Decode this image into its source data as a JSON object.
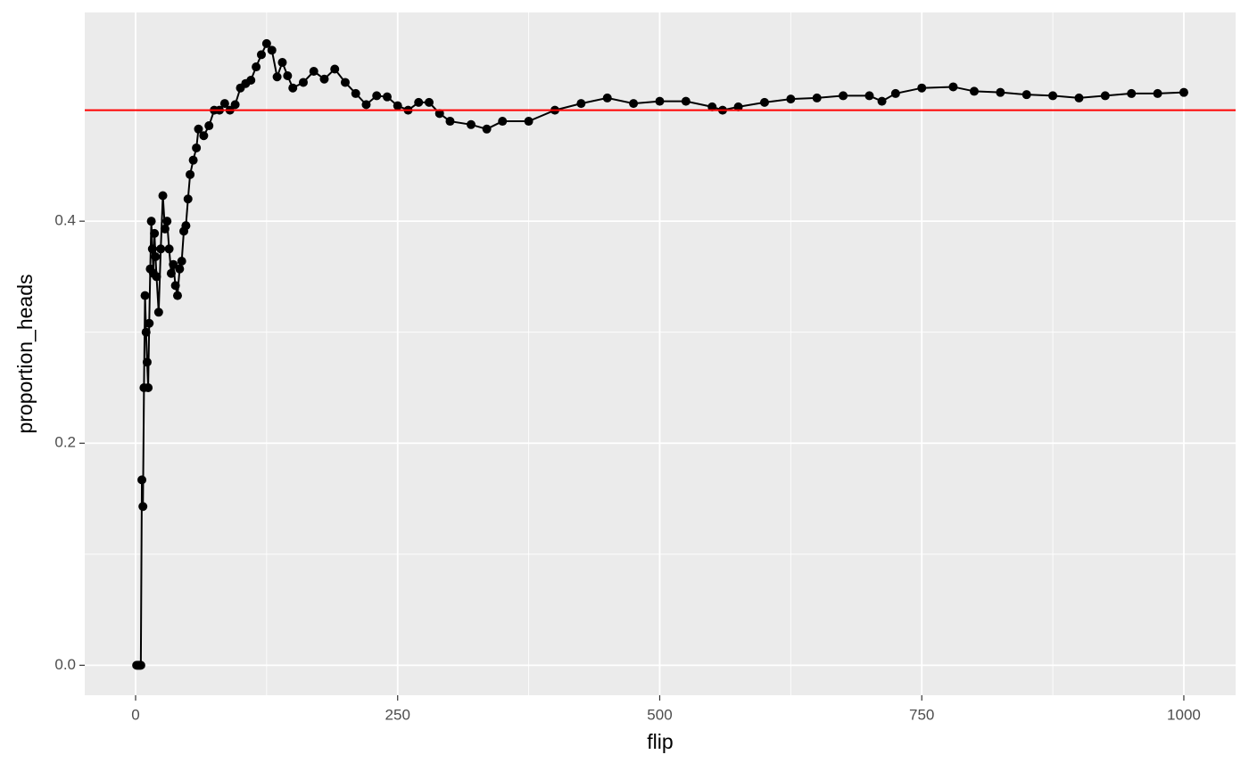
{
  "chart_data": {
    "type": "line",
    "x_label": "flip",
    "y_label": "proportion_heads",
    "x": [
      1,
      2,
      3,
      4,
      5,
      6,
      7,
      8,
      9,
      10,
      11,
      12,
      13,
      14,
      15,
      16,
      17,
      18,
      19,
      20,
      22,
      24,
      26,
      28,
      30,
      32,
      34,
      36,
      38,
      40,
      42,
      44,
      46,
      48,
      50,
      52,
      55,
      58,
      60,
      65,
      70,
      75,
      80,
      85,
      90,
      95,
      100,
      105,
      110,
      115,
      120,
      125,
      130,
      135,
      140,
      145,
      150,
      160,
      170,
      180,
      190,
      200,
      210,
      220,
      230,
      240,
      250,
      260,
      270,
      280,
      290,
      300,
      320,
      335,
      350,
      375,
      400,
      425,
      450,
      475,
      500,
      525,
      550,
      560,
      575,
      600,
      625,
      650,
      675,
      700,
      712,
      725,
      750,
      780,
      800,
      825,
      850,
      875,
      900,
      925,
      950,
      975,
      1000
    ],
    "values": [
      0,
      0,
      0,
      0,
      0,
      0.167,
      0.143,
      0.25,
      0.333,
      0.3,
      0.273,
      0.25,
      0.308,
      0.357,
      0.4,
      0.375,
      0.353,
      0.389,
      0.368,
      0.35,
      0.318,
      0.375,
      0.423,
      0.393,
      0.4,
      0.375,
      0.353,
      0.361,
      0.342,
      0.333,
      0.357,
      0.364,
      0.391,
      0.396,
      0.42,
      0.442,
      0.455,
      0.466,
      0.483,
      0.477,
      0.486,
      0.5,
      0.5,
      0.506,
      0.5,
      0.505,
      0.52,
      0.524,
      0.527,
      0.539,
      0.55,
      0.56,
      0.554,
      0.53,
      0.543,
      0.531,
      0.52,
      0.525,
      0.535,
      0.528,
      0.537,
      0.525,
      0.515,
      0.505,
      0.513,
      0.512,
      0.504,
      0.5,
      0.507,
      0.507,
      0.497,
      0.49,
      0.487,
      0.483,
      0.49,
      0.49,
      0.5,
      0.506,
      0.511,
      0.506,
      0.508,
      0.508,
      0.503,
      0.5,
      0.503,
      0.507,
      0.51,
      0.511,
      0.513,
      0.513,
      0.508,
      0.515,
      0.52,
      0.521,
      0.517,
      0.516,
      0.514,
      0.513,
      0.511,
      0.513,
      0.515,
      0.515,
      0.516
    ],
    "color": "black",
    "hline": 0.5,
    "hline_color": "red",
    "xlim": [
      -48.5,
      1049.4
    ],
    "ylim": [
      -0.027,
      0.588
    ],
    "xticks": [
      0,
      250,
      500,
      750,
      1000
    ],
    "yticks": [
      {
        "value": 0,
        "label": "0.0"
      },
      0.2,
      0.4
    ],
    "x_minor_grid": [
      125,
      375,
      625,
      875
    ],
    "y_minor_grid": [
      0.1,
      0.3,
      0.5
    ],
    "grid": true
  }
}
